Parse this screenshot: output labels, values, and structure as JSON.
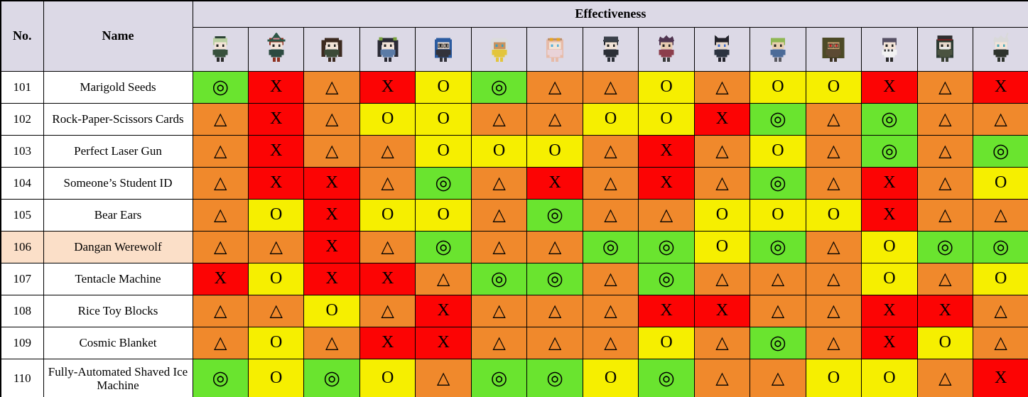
{
  "table": {
    "col_headers": {
      "no": "No.",
      "name": "Name",
      "group": "Effectiveness"
    },
    "colors": {
      "header_bg": "#dcd9e6",
      "highlight_bg": "#fbdfc8",
      "border": "#000000",
      "symbol_bg": {
        "◎": "#6ae42f",
        "O": "#f6ef00",
        "△": "#f0892c",
        "X": "#fc0404"
      }
    },
    "symbol_classes": {
      "◎": "best",
      "O": "good",
      "△": "fair",
      "X": "bad"
    },
    "characters": [
      {
        "id": "kirumi-tojo",
        "icon": {
          "style": "short",
          "hair": "#b9cfa2",
          "skin": "#f3e4d7",
          "body": "#37503c",
          "hat": "maid",
          "hatColor": "#2c4435",
          "legs": "#2c2c2c"
        }
      },
      {
        "id": "himiko-yumeno",
        "icon": {
          "style": "short",
          "hair": "#8e3120",
          "skin": "#f3e4d7",
          "body": "#2c4a40",
          "hat": "witch",
          "hatColor": "#2d5747",
          "accent": "#d98a96",
          "legs": "#8e3120"
        }
      },
      {
        "id": "maki-harukawa",
        "icon": {
          "style": "twin",
          "hair": "#3c2a20",
          "skin": "#f3e4d7",
          "body": "#3c4a38",
          "legs": "#3c2a20"
        }
      },
      {
        "id": "tenko-chabashira",
        "icon": {
          "style": "twin",
          "hair": "#2a2a34",
          "skin": "#f3e4d7",
          "body": "#5b7ba6",
          "hat": "bows",
          "accent": "#79a33f",
          "legs": "#2a2a34"
        }
      },
      {
        "id": "tsumugi-shirogane",
        "icon": {
          "style": "long",
          "hair": "#2b5ba0",
          "skin": "#f3e4d7",
          "body": "#33333b",
          "glasses": true,
          "legs": "#33333b"
        }
      },
      {
        "id": "angie-yonaga",
        "icon": {
          "style": "long",
          "hair": "#dcdcdc",
          "skin": "#c9935f",
          "body": "#e3c53b",
          "eye": "#3aa0c0",
          "legs": "#e3c53b"
        }
      },
      {
        "id": "miu-iruma",
        "icon": {
          "style": "long",
          "hair": "#e7bba8",
          "skin": "#f3e4d7",
          "body": "#e9d3d8",
          "hat": "goggles",
          "accent": "#e8a31f",
          "eye": "#56b0d8",
          "legs": "#e7bba8"
        }
      },
      {
        "id": "shuichi-saihara",
        "icon": {
          "style": "short",
          "hair": "#23272d",
          "skin": "#f3e4d7",
          "body": "#2b2f36",
          "hat": "cap",
          "hatColor": "#3a4049",
          "legs": "#2b2f36"
        }
      },
      {
        "id": "kaito-momota",
        "icon": {
          "style": "spiky",
          "hair": "#503550",
          "skin": "#e8cbb0",
          "body": "#8c3e4c",
          "legs": "#3a3a3a"
        }
      },
      {
        "id": "ryoma-hoshi",
        "icon": {
          "style": "short",
          "hair": "#23232b",
          "skin": "#e8d9cc",
          "body": "#2b3340",
          "hat": "horns",
          "hatColor": "#23232b",
          "eye": "#3a6ad0",
          "legs": "#23232b"
        }
      },
      {
        "id": "rantaro-amami",
        "icon": {
          "style": "short",
          "hair": "#8fb754",
          "skin": "#e9cfae",
          "body": "#4c6b98",
          "legs": "#5a5a62"
        }
      },
      {
        "id": "gonta-gokuhara",
        "icon": {
          "style": "messy",
          "hair": "#4c4a26",
          "skin": "#cfa573",
          "body": "#5c4a33",
          "eye": "#c42222",
          "glasses": true,
          "legs": "#3c3223"
        }
      },
      {
        "id": "kokichi-oma",
        "icon": {
          "style": "short",
          "hair": "#575165",
          "skin": "#f3e4d7",
          "body": "#f2f2f2",
          "scarf": true,
          "legs": "#2a2a2a"
        }
      },
      {
        "id": "korekiyo-shinguji",
        "icon": {
          "style": "long",
          "hair": "#2c3a32",
          "skin": "#e8d9cc",
          "body": "#4b5340",
          "hat": "military",
          "hatColor": "#2f2f30",
          "mask": true,
          "legs": "#3a4034"
        }
      },
      {
        "id": "k1-b0",
        "icon": {
          "style": "spiky",
          "hair": "#d9d9d9",
          "skin": "#f3e4d7",
          "body": "#2e332c",
          "antenna": true,
          "eye": "#48a8b8",
          "accent": "#79b33f",
          "legs": "#2e332c"
        }
      }
    ],
    "rows": [
      {
        "no": "101",
        "name": "Marigold Seeds",
        "highlight": false,
        "values": [
          "◎",
          "X",
          "△",
          "X",
          "O",
          "◎",
          "△",
          "△",
          "O",
          "△",
          "O",
          "O",
          "X",
          "△",
          "X"
        ]
      },
      {
        "no": "102",
        "name": "Rock-Paper-Scissors Cards",
        "highlight": false,
        "values": [
          "△",
          "X",
          "△",
          "O",
          "O",
          "△",
          "△",
          "O",
          "O",
          "X",
          "◎",
          "△",
          "◎",
          "△",
          "△"
        ]
      },
      {
        "no": "103",
        "name": "Perfect Laser Gun",
        "highlight": false,
        "values": [
          "△",
          "X",
          "△",
          "△",
          "O",
          "O",
          "O",
          "△",
          "X",
          "△",
          "O",
          "△",
          "◎",
          "△",
          "◎"
        ]
      },
      {
        "no": "104",
        "name": "Someone’s Student ID",
        "highlight": false,
        "values": [
          "△",
          "X",
          "X",
          "△",
          "◎",
          "△",
          "X",
          "△",
          "X",
          "△",
          "◎",
          "△",
          "X",
          "△",
          "O"
        ]
      },
      {
        "no": "105",
        "name": "Bear Ears",
        "highlight": false,
        "values": [
          "△",
          "O",
          "X",
          "O",
          "O",
          "△",
          "◎",
          "△",
          "△",
          "O",
          "O",
          "O",
          "X",
          "△",
          "△"
        ]
      },
      {
        "no": "106",
        "name": "Dangan Werewolf",
        "highlight": true,
        "values": [
          "△",
          "△",
          "X",
          "△",
          "◎",
          "△",
          "△",
          "◎",
          "◎",
          "O",
          "◎",
          "△",
          "O",
          "◎",
          "◎"
        ]
      },
      {
        "no": "107",
        "name": "Tentacle Machine",
        "highlight": false,
        "values": [
          "X",
          "O",
          "X",
          "X",
          "△",
          "◎",
          "◎",
          "△",
          "◎",
          "△",
          "△",
          "△",
          "O",
          "△",
          "O"
        ]
      },
      {
        "no": "108",
        "name": "Rice Toy Blocks",
        "highlight": false,
        "values": [
          "△",
          "△",
          "O",
          "△",
          "X",
          "△",
          "△",
          "△",
          "X",
          "X",
          "△",
          "△",
          "X",
          "X",
          "△"
        ]
      },
      {
        "no": "109",
        "name": "Cosmic Blanket",
        "highlight": false,
        "values": [
          "△",
          "O",
          "△",
          "X",
          "X",
          "△",
          "△",
          "△",
          "O",
          "△",
          "◎",
          "△",
          "X",
          "O",
          "△"
        ]
      },
      {
        "no": "110",
        "name": "Fully-Automated Shaved Ice Machine",
        "highlight": false,
        "tall": true,
        "values": [
          "◎",
          "O",
          "◎",
          "O",
          "△",
          "◎",
          "◎",
          "O",
          "◎",
          "△",
          "△",
          "O",
          "O",
          "△",
          "X"
        ]
      }
    ]
  },
  "chart_data": {
    "type": "table",
    "title": "Effectiveness",
    "columns": [
      "No.",
      "Name",
      "kirumi-tojo",
      "himiko-yumeno",
      "maki-harukawa",
      "tenko-chabashira",
      "tsumugi-shirogane",
      "angie-yonaga",
      "miu-iruma",
      "shuichi-saihara",
      "kaito-momota",
      "ryoma-hoshi",
      "rantaro-amami",
      "gonta-gokuhara",
      "kokichi-oma",
      "korekiyo-shinguji",
      "k1-b0"
    ],
    "rows": [
      [
        "101",
        "Marigold Seeds",
        "◎",
        "X",
        "△",
        "X",
        "O",
        "◎",
        "△",
        "△",
        "O",
        "△",
        "O",
        "O",
        "X",
        "△",
        "X"
      ],
      [
        "102",
        "Rock-Paper-Scissors Cards",
        "△",
        "X",
        "△",
        "O",
        "O",
        "△",
        "△",
        "O",
        "O",
        "X",
        "◎",
        "△",
        "◎",
        "△",
        "△"
      ],
      [
        "103",
        "Perfect Laser Gun",
        "△",
        "X",
        "△",
        "△",
        "O",
        "O",
        "O",
        "△",
        "X",
        "△",
        "O",
        "△",
        "◎",
        "△",
        "◎"
      ],
      [
        "104",
        "Someone’s Student ID",
        "△",
        "X",
        "X",
        "△",
        "◎",
        "△",
        "X",
        "△",
        "X",
        "△",
        "◎",
        "△",
        "X",
        "△",
        "O"
      ],
      [
        "105",
        "Bear Ears",
        "△",
        "O",
        "X",
        "O",
        "O",
        "△",
        "◎",
        "△",
        "△",
        "O",
        "O",
        "O",
        "X",
        "△",
        "△"
      ],
      [
        "106",
        "Dangan Werewolf",
        "△",
        "△",
        "X",
        "△",
        "◎",
        "△",
        "△",
        "◎",
        "◎",
        "O",
        "◎",
        "△",
        "O",
        "◎",
        "◎"
      ],
      [
        "107",
        "Tentacle Machine",
        "X",
        "O",
        "X",
        "X",
        "△",
        "◎",
        "◎",
        "△",
        "◎",
        "△",
        "△",
        "△",
        "O",
        "△",
        "O"
      ],
      [
        "108",
        "Rice Toy Blocks",
        "△",
        "△",
        "O",
        "△",
        "X",
        "△",
        "△",
        "△",
        "X",
        "X",
        "△",
        "△",
        "X",
        "X",
        "△"
      ],
      [
        "109",
        "Cosmic Blanket",
        "△",
        "O",
        "△",
        "X",
        "X",
        "△",
        "△",
        "△",
        "O",
        "△",
        "◎",
        "△",
        "X",
        "O",
        "△"
      ],
      [
        "110",
        "Fully-Automated Shaved Ice Machine",
        "◎",
        "O",
        "◎",
        "O",
        "△",
        "◎",
        "◎",
        "O",
        "◎",
        "△",
        "△",
        "O",
        "O",
        "△",
        "X"
      ]
    ],
    "cell_color_legend": {
      "◎": "#6ae42f",
      "O": "#f6ef00",
      "△": "#f0892c",
      "X": "#fc0404"
    },
    "highlighted_row": "106"
  }
}
